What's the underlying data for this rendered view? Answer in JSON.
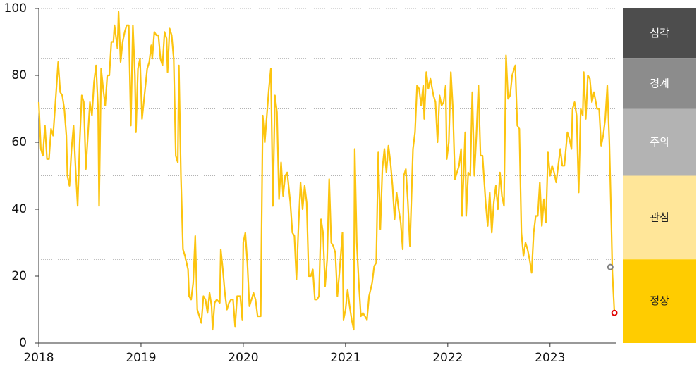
{
  "chart_data": {
    "type": "line",
    "x": [
      2018.0,
      2018.02,
      2018.04,
      2018.06,
      2018.08,
      2018.1,
      2018.12,
      2018.14,
      2018.17,
      2018.19,
      2018.21,
      2018.23,
      2018.25,
      2018.27,
      2018.28,
      2018.3,
      2018.32,
      2018.34,
      2018.36,
      2018.38,
      2018.4,
      2018.42,
      2018.44,
      2018.46,
      2018.48,
      2018.5,
      2018.52,
      2018.54,
      2018.56,
      2018.58,
      2018.59,
      2018.61,
      2018.63,
      2018.65,
      2018.67,
      2018.69,
      2018.71,
      2018.73,
      2018.74,
      2018.77,
      2018.78,
      2018.8,
      2018.82,
      2018.84,
      2018.86,
      2018.88,
      2018.9,
      2018.92,
      2018.94,
      2018.95,
      2018.97,
      2018.99,
      2019.01,
      2019.03,
      2019.06,
      2019.08,
      2019.1,
      2019.11,
      2019.13,
      2019.15,
      2019.17,
      2019.19,
      2019.21,
      2019.23,
      2019.25,
      2019.26,
      2019.28,
      2019.3,
      2019.32,
      2019.34,
      2019.36,
      2019.37,
      2019.39,
      2019.41,
      2019.43,
      2019.46,
      2019.47,
      2019.49,
      2019.51,
      2019.53,
      2019.55,
      2019.57,
      2019.59,
      2019.61,
      2019.63,
      2019.65,
      2019.67,
      2019.69,
      2019.7,
      2019.72,
      2019.74,
      2019.77,
      2019.78,
      2019.8,
      2019.82,
      2019.84,
      2019.86,
      2019.88,
      2019.9,
      2019.92,
      2019.94,
      2019.97,
      2019.99,
      2020.0,
      2020.02,
      2020.04,
      2020.06,
      2020.08,
      2020.1,
      2020.12,
      2020.14,
      2020.17,
      2020.19,
      2020.21,
      2020.23,
      2020.25,
      2020.27,
      2020.29,
      2020.31,
      2020.33,
      2020.35,
      2020.37,
      2020.39,
      2020.41,
      2020.43,
      2020.46,
      2020.48,
      2020.5,
      2020.52,
      2020.54,
      2020.56,
      2020.58,
      2020.6,
      2020.62,
      2020.64,
      2020.66,
      2020.68,
      2020.7,
      2020.72,
      2020.74,
      2020.76,
      2020.78,
      2020.8,
      2020.82,
      2020.84,
      2020.86,
      2020.88,
      2020.9,
      2020.92,
      2020.94,
      2020.97,
      2020.98,
      2021.0,
      2021.02,
      2021.04,
      2021.06,
      2021.08,
      2021.09,
      2021.11,
      2021.13,
      2021.15,
      2021.17,
      2021.19,
      2021.21,
      2021.23,
      2021.26,
      2021.28,
      2021.3,
      2021.32,
      2021.34,
      2021.36,
      2021.38,
      2021.4,
      2021.42,
      2021.44,
      2021.46,
      2021.48,
      2021.5,
      2021.52,
      2021.54,
      2021.56,
      2021.57,
      2021.59,
      2021.61,
      2021.63,
      2021.66,
      2021.68,
      2021.7,
      2021.72,
      2021.74,
      2021.76,
      2021.77,
      2021.79,
      2021.81,
      2021.83,
      2021.86,
      2021.88,
      2021.9,
      2021.92,
      2021.94,
      2021.96,
      2021.98,
      2021.99,
      2022.01,
      2022.03,
      2022.05,
      2022.07,
      2022.09,
      2022.11,
      2022.13,
      2022.14,
      2022.17,
      2022.18,
      2022.2,
      2022.22,
      2022.24,
      2022.26,
      2022.28,
      2022.3,
      2022.32,
      2022.34,
      2022.37,
      2022.39,
      2022.41,
      2022.43,
      2022.45,
      2022.47,
      2022.49,
      2022.51,
      2022.53,
      2022.55,
      2022.57,
      2022.59,
      2022.61,
      2022.63,
      2022.66,
      2022.68,
      2022.7,
      2022.72,
      2022.74,
      2022.76,
      2022.78,
      2022.8,
      2022.82,
      2022.84,
      2022.86,
      2022.88,
      2022.9,
      2022.92,
      2022.94,
      2022.96,
      2022.98,
      2023.0,
      2023.02,
      2023.04,
      2023.06,
      2023.08,
      2023.1,
      2023.12,
      2023.14,
      2023.17,
      2023.19,
      2023.21,
      2023.22,
      2023.24,
      2023.26,
      2023.28,
      2023.3,
      2023.32,
      2023.33,
      2023.35,
      2023.37,
      2023.39,
      2023.41,
      2023.43,
      2023.46,
      2023.48,
      2023.5,
      2023.52,
      2023.54,
      2023.56,
      2023.58,
      2023.6,
      2023.61,
      2023.63
    ],
    "series": [
      {
        "color": "#fcc40f",
        "values": [
          72,
          58,
          56,
          65,
          55,
          55,
          64,
          62,
          75,
          84,
          75,
          74,
          70,
          62,
          50,
          47,
          58,
          65,
          52,
          41,
          60,
          74,
          72,
          52,
          62,
          72,
          68,
          78,
          83,
          70,
          41,
          82,
          76,
          71,
          80,
          80,
          90,
          90,
          95,
          88,
          99,
          84,
          90,
          93,
          95,
          95,
          65,
          95,
          80,
          63,
          82,
          85,
          67,
          73,
          82,
          84,
          89,
          85,
          93,
          92,
          92,
          85,
          83,
          93,
          91,
          81,
          94,
          92,
          85,
          56,
          54,
          83,
          50,
          28,
          26,
          22,
          14,
          13,
          18,
          32,
          10,
          8,
          6,
          14,
          13,
          9,
          15,
          11,
          4,
          12,
          13,
          12,
          28,
          22,
          15,
          10,
          12,
          13,
          13,
          5,
          14,
          14,
          7,
          30,
          33,
          24,
          11,
          13,
          15,
          13,
          8,
          8,
          68,
          60,
          68,
          76,
          82,
          41,
          74,
          69,
          43,
          54,
          44,
          50,
          51,
          42,
          33,
          32,
          19,
          35,
          48,
          40,
          47,
          42,
          20,
          20,
          22,
          13,
          13,
          14,
          37,
          33,
          17,
          25,
          49,
          30,
          29,
          27,
          14,
          21,
          33,
          7,
          10,
          16,
          11,
          7,
          4,
          58,
          30,
          18,
          8,
          9,
          8,
          7,
          14,
          18,
          23,
          24,
          57,
          34,
          52,
          58,
          51,
          59,
          54,
          47,
          37,
          45,
          40,
          36,
          28,
          50,
          52,
          42,
          29,
          58,
          63,
          77,
          76,
          71,
          77,
          67,
          81,
          76,
          79,
          74,
          72,
          60,
          74,
          71,
          72,
          77,
          55,
          60,
          81,
          70,
          49,
          51,
          53,
          58,
          38,
          63,
          38,
          51,
          50,
          75,
          50,
          62,
          77,
          56,
          56,
          42,
          35,
          45,
          33,
          42,
          47,
          40,
          51,
          44,
          41,
          86,
          73,
          74,
          80,
          83,
          65,
          64,
          33,
          26,
          30,
          28,
          25,
          21,
          33,
          38,
          38,
          48,
          35,
          43,
          36,
          57,
          50,
          53,
          51,
          48,
          53,
          58,
          53,
          53,
          63,
          61,
          58,
          70,
          72,
          68,
          45,
          70,
          68,
          81,
          67,
          80,
          79,
          72,
          75,
          70,
          70,
          59,
          62,
          67,
          77,
          60,
          35,
          21,
          9
        ]
      }
    ],
    "markers": [
      {
        "x": 2023.59,
        "value": 22.7,
        "color": "#808080"
      },
      {
        "x": 2023.63,
        "value": 9,
        "color": "#e00000"
      }
    ],
    "bands": [
      {
        "label": "심각",
        "from": 85,
        "to": 100,
        "color": "#4d4d4d"
      },
      {
        "label": "경계",
        "from": 70,
        "to": 85,
        "color": "#8c8c8c"
      },
      {
        "label": "주의",
        "from": 50,
        "to": 70,
        "color": "#b3b3b3"
      },
      {
        "label": "관심",
        "from": 25,
        "to": 50,
        "color": "#ffe699"
      },
      {
        "label": "정상",
        "from": 0,
        "to": 25,
        "color": "#ffcc00"
      }
    ],
    "xlim": [
      2018,
      2023.65
    ],
    "xticks": [
      2018,
      2019,
      2020,
      2021,
      2022,
      2023
    ],
    "ylim": [
      0,
      100
    ],
    "yticks": [
      0,
      20,
      40,
      60,
      80,
      100
    ]
  }
}
